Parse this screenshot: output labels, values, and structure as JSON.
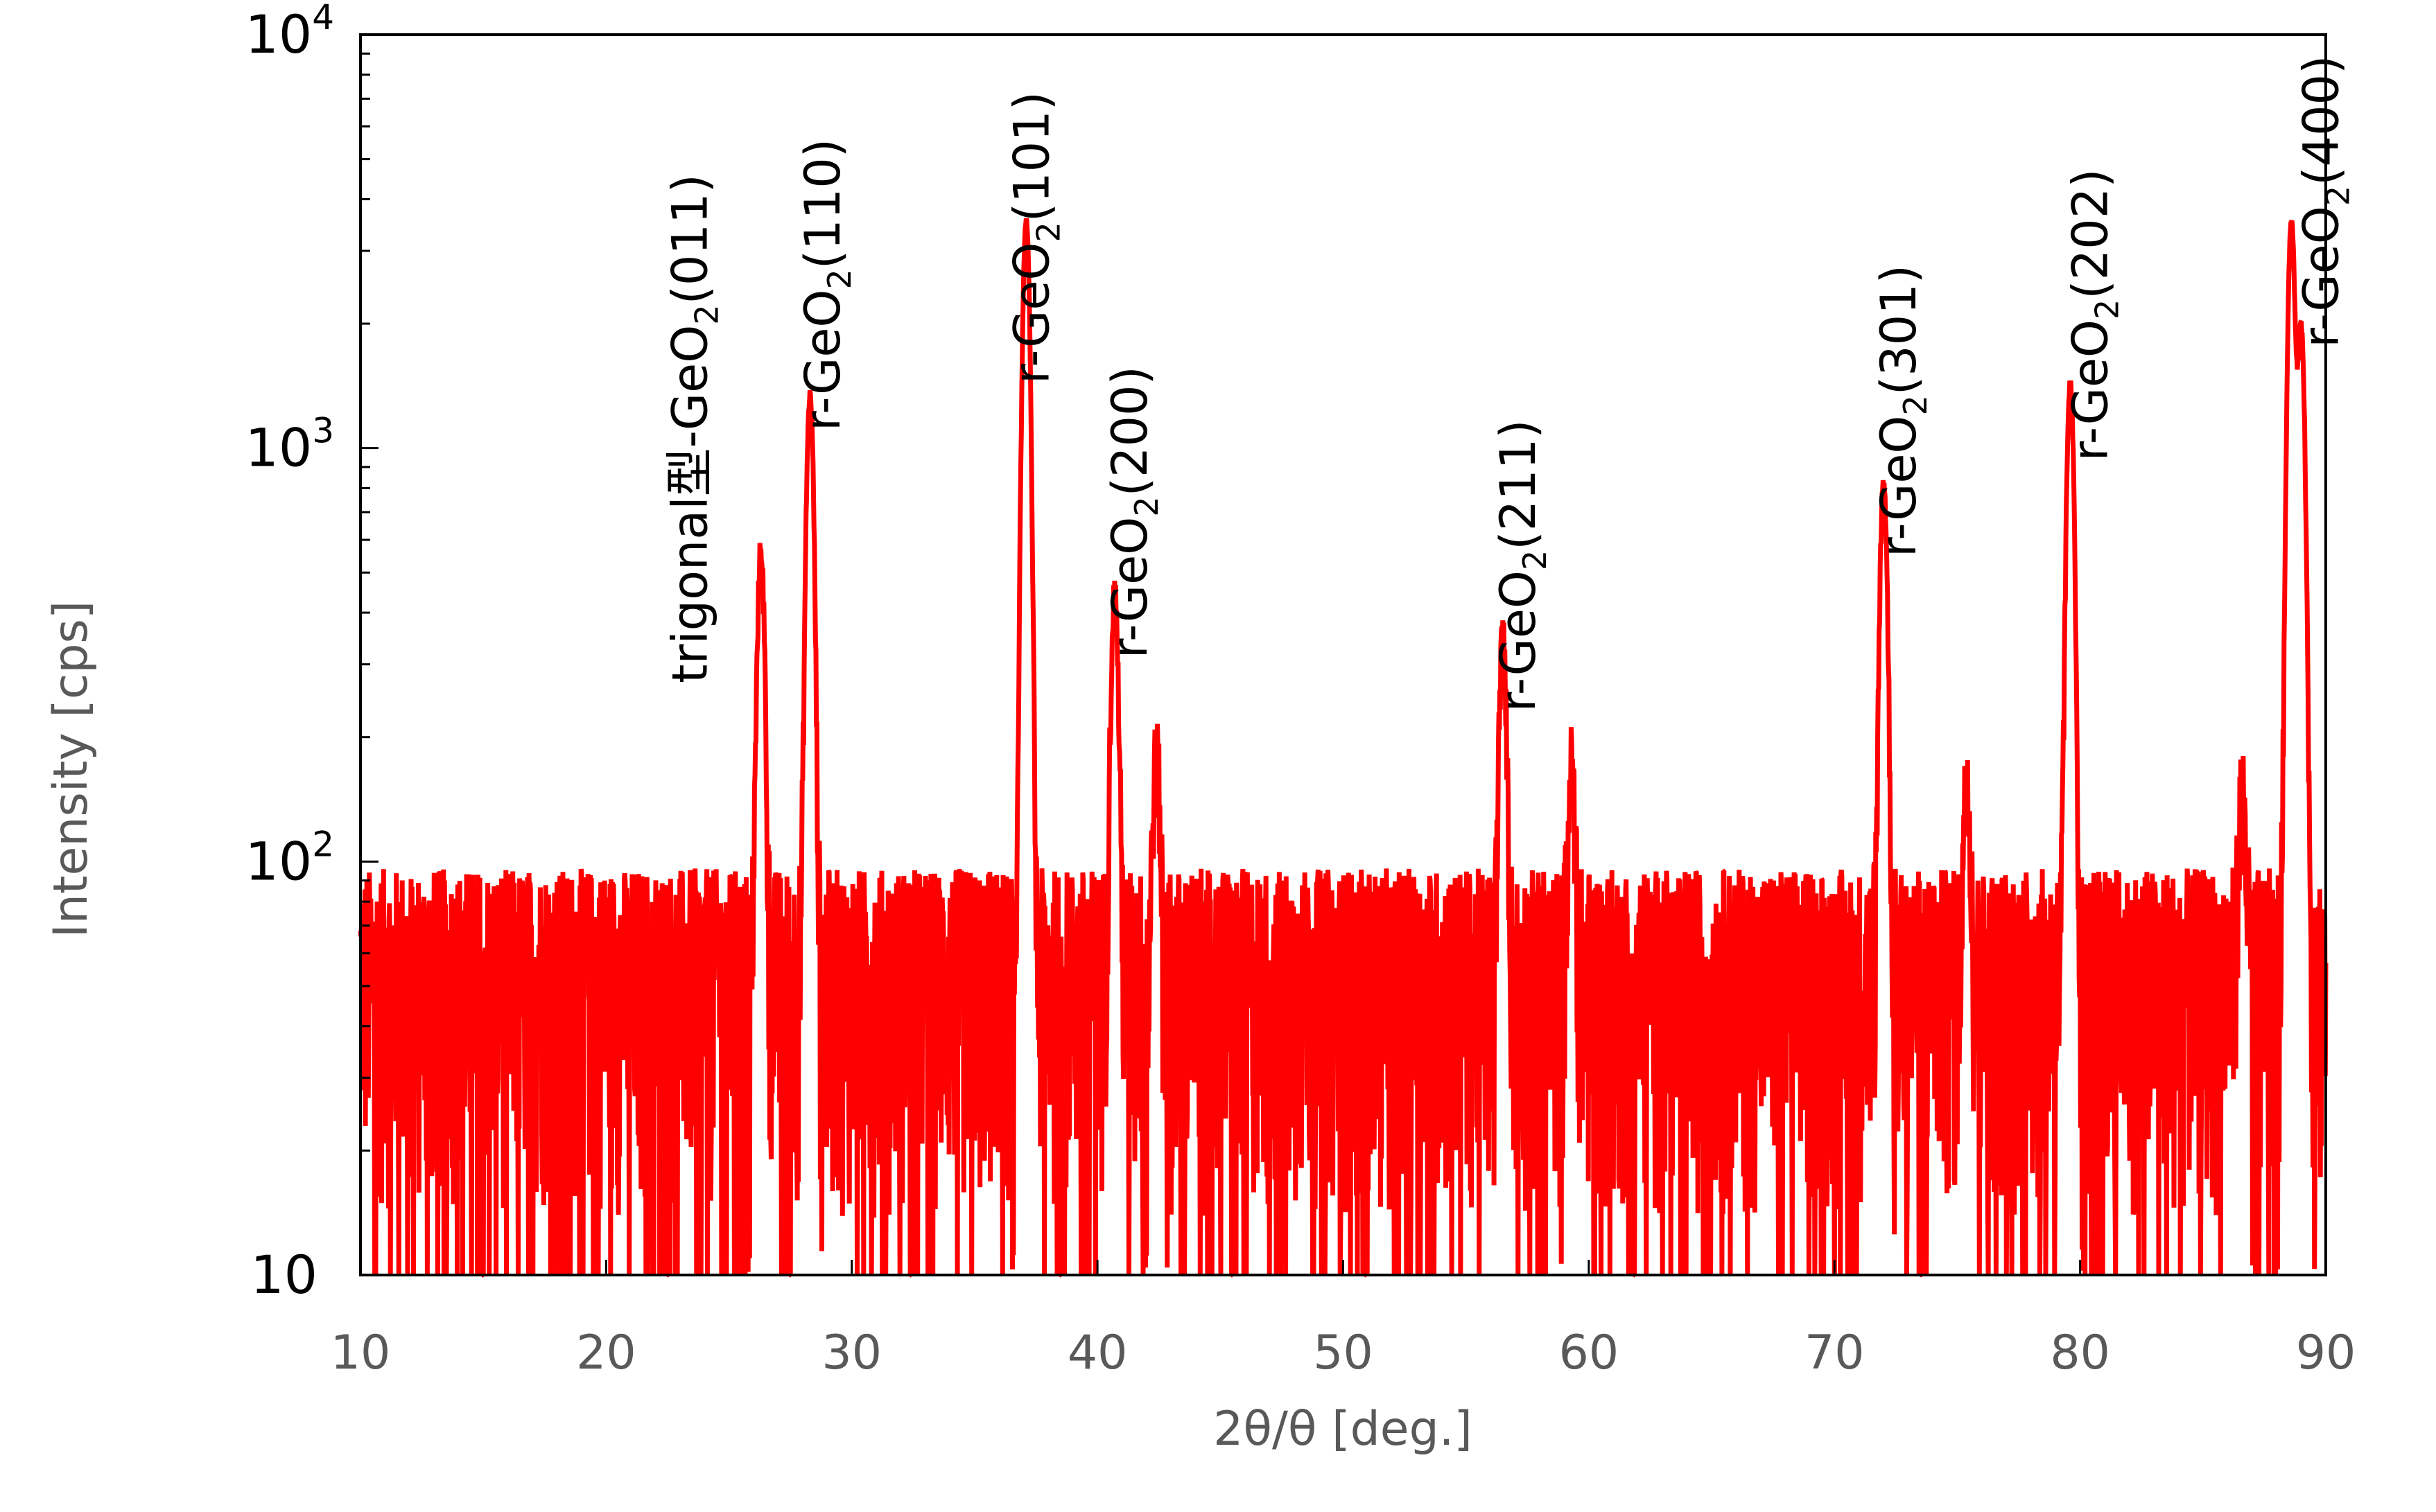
{
  "colors": {
    "series": "#ff0000",
    "axis": "#000000",
    "axis_title": "#595959",
    "background": "#ffffff"
  },
  "chart_data": {
    "type": "line",
    "title": "",
    "xlabel": "2θ/θ [deg.]",
    "ylabel": "Intensity [cps]",
    "xlim": [
      10,
      90
    ],
    "ylim": [
      10,
      10000
    ],
    "y_scale": "log",
    "grid": false,
    "legend": "none",
    "x_ticks": [
      "10",
      "20",
      "30",
      "40",
      "50",
      "60",
      "70",
      "80",
      "90"
    ],
    "y_ticks": [
      {
        "value": 10,
        "base": "10",
        "exp": ""
      },
      {
        "value": 100,
        "base": "10",
        "exp": "2"
      },
      {
        "value": 1000,
        "base": "10",
        "exp": "3"
      },
      {
        "value": 10000,
        "base": "10",
        "exp": "4"
      }
    ],
    "series": [
      {
        "noise_level": 55,
        "noise_floor": 10,
        "peaks": [
          {
            "x": 26.3,
            "y": 520
          },
          {
            "x": 28.3,
            "y": 1300
          },
          {
            "x": 37.1,
            "y": 3500
          },
          {
            "x": 40.7,
            "y": 400
          },
          {
            "x": 42.4,
            "y": 130
          },
          {
            "x": 56.5,
            "y": 300
          },
          {
            "x": 59.3,
            "y": 120
          },
          {
            "x": 72.0,
            "y": 780
          },
          {
            "x": 75.4,
            "y": 110
          },
          {
            "x": 79.6,
            "y": 1380
          },
          {
            "x": 86.6,
            "y": 100
          },
          {
            "x": 88.6,
            "y": 3500
          },
          {
            "x": 89.0,
            "y": 1900
          }
        ]
      }
    ],
    "annotations": [
      {
        "prefix": "trigonal型-GeO",
        "sub": "2",
        "suffix": "(011)",
        "x": 24.1,
        "y": 270
      },
      {
        "prefix": "r-GeO",
        "sub": "2",
        "suffix": "(110)",
        "x": 29.5,
        "y": 1100
      },
      {
        "prefix": "r-GeO",
        "sub": "2",
        "suffix": "(101)",
        "x": 38.0,
        "y": 1430
      },
      {
        "prefix": "r-GeO",
        "sub": "2",
        "suffix": "(200)",
        "x": 42.0,
        "y": 310
      },
      {
        "prefix": "r-GeO",
        "sub": "2",
        "suffix": "(211)",
        "x": 57.8,
        "y": 230
      },
      {
        "prefix": "r-GeO",
        "sub": "2",
        "suffix": "(301)",
        "x": 73.3,
        "y": 545
      },
      {
        "prefix": "r-GeO",
        "sub": "2",
        "suffix": "(202)",
        "x": 81.1,
        "y": 930
      },
      {
        "prefix": "r-GeO",
        "sub": "2",
        "suffix": "(400)",
        "x": 90.5,
        "y": 1750
      }
    ]
  }
}
